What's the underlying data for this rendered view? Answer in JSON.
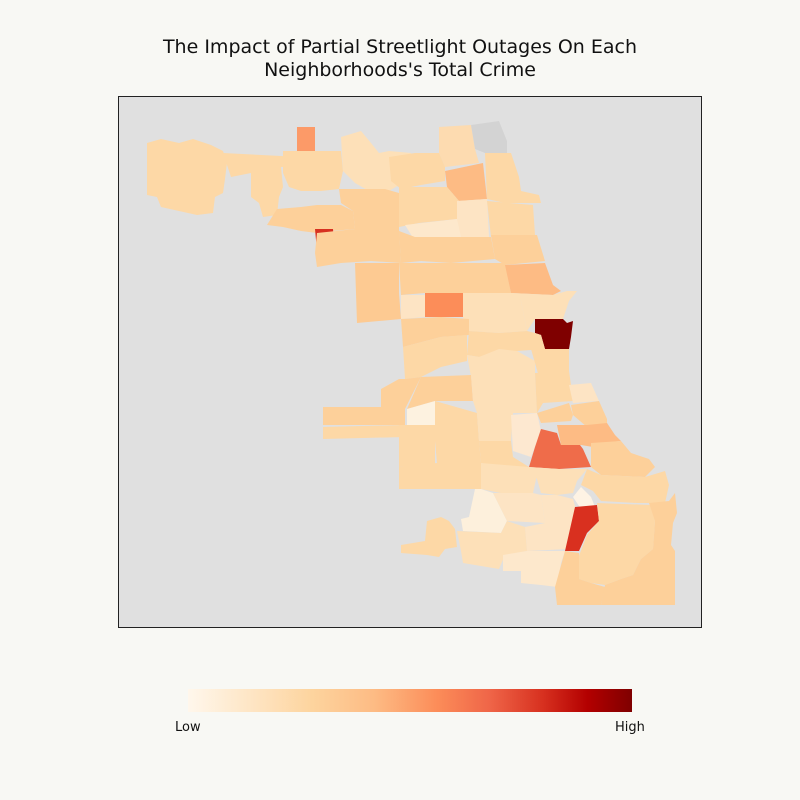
{
  "title_line1": "The Impact of Partial Streetlight Outages On Each",
  "title_line2": "Neighborhoods's Total Crime",
  "legend": {
    "low_label": "Low",
    "high_label": "High",
    "colormap": [
      "#fff7ec",
      "#fdd49e",
      "#fdbb84",
      "#fc8d59",
      "#ef6548",
      "#d7301f",
      "#b30000",
      "#7f0000"
    ]
  },
  "colors": {
    "no_data": "#d3d3d3",
    "background": "#e0e0e0"
  }
}
